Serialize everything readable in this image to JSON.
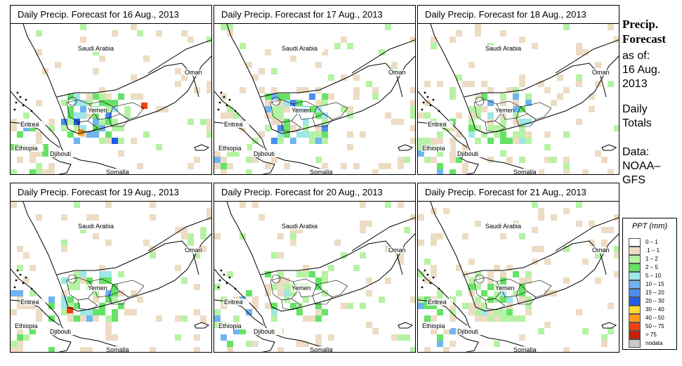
{
  "panels": [
    {
      "title": "Daily Precip. Forecast for  16 Aug., 2013"
    },
    {
      "title": "Daily Precip. Forecast for  17 Aug., 2013"
    },
    {
      "title": "Daily Precip. Forecast for  18 Aug., 2013"
    },
    {
      "title": "Daily Precip. Forecast for  19 Aug., 2013"
    },
    {
      "title": "Daily Precip. Forecast for  20 Aug., 2013"
    },
    {
      "title": "Daily Precip. Forecast for  21 Aug., 2013"
    }
  ],
  "map_labels": {
    "saudi": "Saudi Arabia",
    "oman": "Oman",
    "yemen": "Yemen",
    "eritrea": "Eritrea",
    "ethiopia": "Ethiopia",
    "djibouti": "Djibouti",
    "somalia": "Somalia"
  },
  "sidebar": {
    "heading_line1": "Precip.",
    "heading_line2": "Forecast",
    "asof": "as of:",
    "date_line1": "16 Aug.",
    "date_line2": "2013",
    "daily_line1": "Daily",
    "daily_line2": "Totals",
    "data_line1": "Data:",
    "data_line2": "NOAA–",
    "data_line3": "GFS"
  },
  "legend": {
    "title": "PPT (mm)",
    "items": [
      {
        "label": "0 – 1",
        "color": "#ffffff"
      },
      {
        "label": ".1 – 1",
        "color": "#eddcc4"
      },
      {
        "label": "1 – 2",
        "color": "#b6f2a4"
      },
      {
        "label": "2 – 5",
        "color": "#66e266"
      },
      {
        "label": "5 – 10",
        "color": "#9fe6e6"
      },
      {
        "label": "10 – 15",
        "color": "#70b4f0"
      },
      {
        "label": "15 – 20",
        "color": "#4a8ef0"
      },
      {
        "label": "20 – 30",
        "color": "#1f5ce8"
      },
      {
        "label": "30 – 40",
        "color": "#ffd92e"
      },
      {
        "label": "40 – 50",
        "color": "#ff9a1a"
      },
      {
        "label": "50 – 75",
        "color": "#f0400f"
      },
      {
        "label": "> 75",
        "color": "#c81e0a"
      },
      {
        "label": "nodata",
        "color": "#c8c8c8"
      }
    ]
  }
}
